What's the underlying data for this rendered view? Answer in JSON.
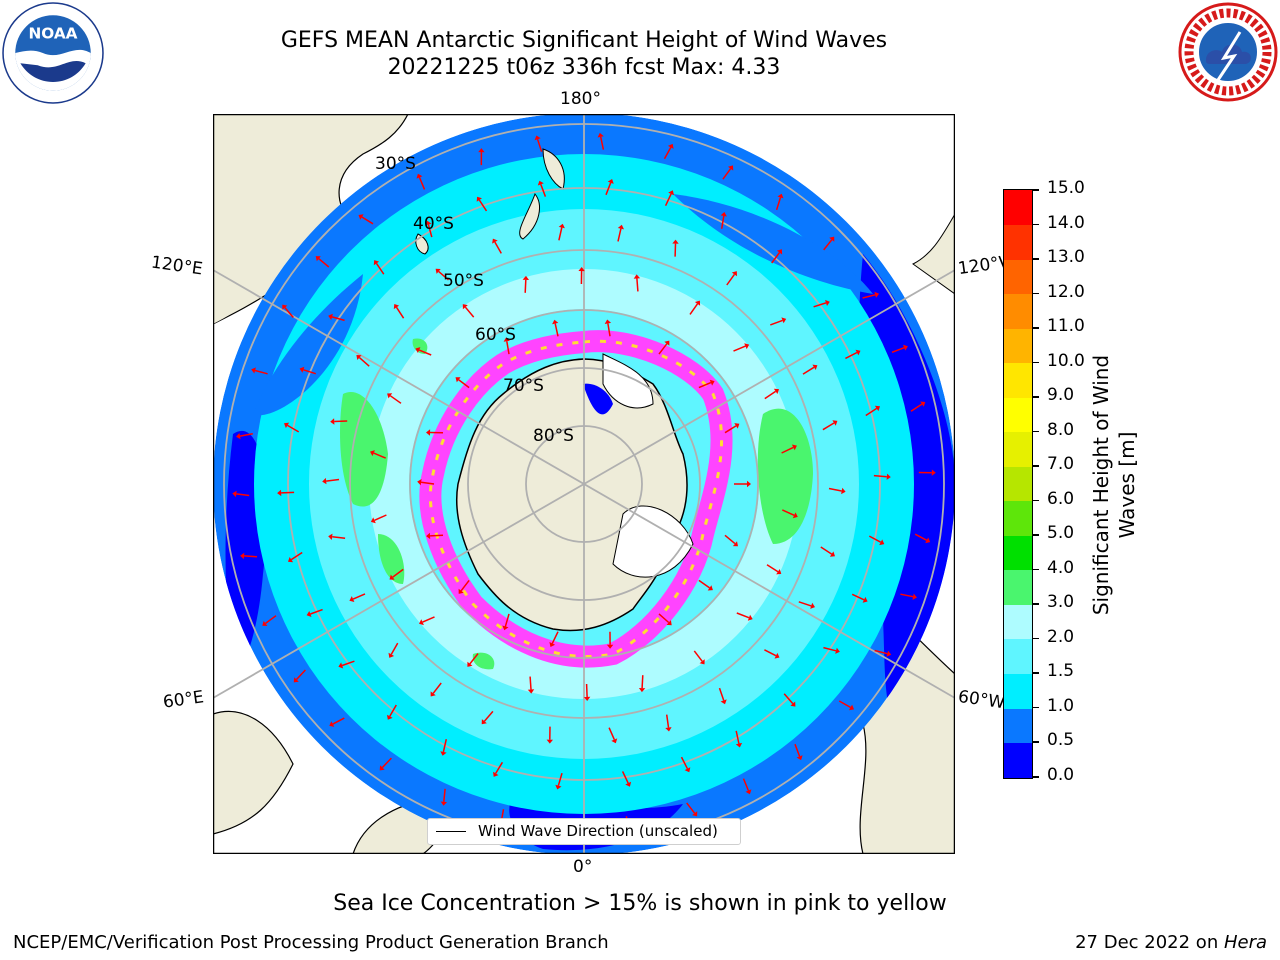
{
  "header": {
    "title_line1": "GEFS MEAN Antarctic Significant Height of Wind Waves",
    "title_line2": "20221225 t06z 336h fcst   Max: 4.33"
  },
  "logos": {
    "noaa_text": "NOAA",
    "noaa_ring": "NATIONAL OCEANIC AND ATMOSPHERIC ADMINISTRATION · U.S. DEPARTMENT OF COMMERCE",
    "nws_ring": "NATIONAL WEATHER SERVICE"
  },
  "map": {
    "longitude_labels": {
      "top": "180°",
      "bottom": "0°",
      "upper_left": "120°E",
      "upper_right": "120°W",
      "lower_left": "60°E",
      "lower_right": "60°W"
    },
    "latitude_labels": [
      "30°S",
      "40°S",
      "50°S",
      "60°S",
      "70°S",
      "80°S"
    ],
    "legend_label": "Wind Wave Direction (unscaled)",
    "colors": {
      "land": "#eeecd9",
      "ice": "#ff44ff",
      "ice_edge_yellow": "#ffdd33",
      "ocean_deep": "#0000ff",
      "ocean_blue": "#0a78ff",
      "ocean_cyan": "#00eeff",
      "ocean_light": "#5ff5ff",
      "ocean_pale": "#aefcff",
      "green": "#4af56e",
      "arrow": "#ff0000",
      "graticule": "#b0b0b0"
    }
  },
  "colorbar": {
    "label": "Significant Height of Wind Waves [m]",
    "ticks": [
      "0.0",
      "0.5",
      "1.0",
      "1.5",
      "2.0",
      "3.0",
      "4.0",
      "5.0",
      "6.0",
      "7.0",
      "8.0",
      "9.0",
      "10.0",
      "11.0",
      "12.0",
      "13.0",
      "14.0",
      "15.0"
    ],
    "colors": [
      "#0000ff",
      "#0a78ff",
      "#00eeff",
      "#5ff5ff",
      "#aefcff",
      "#4af56e",
      "#00e000",
      "#5ee60a",
      "#b6e600",
      "#e6f000",
      "#ffff00",
      "#ffe600",
      "#ffb400",
      "#ff8c00",
      "#ff6400",
      "#ff3200",
      "#ff0000"
    ]
  },
  "footer": {
    "note": "Sea Ice Concentration > 15% is shown in pink to yellow",
    "left": "NCEP/EMC/Verification Post Processing Product Generation Branch",
    "right_prefix": "27 Dec 2022 on ",
    "right_host": "Hera"
  }
}
